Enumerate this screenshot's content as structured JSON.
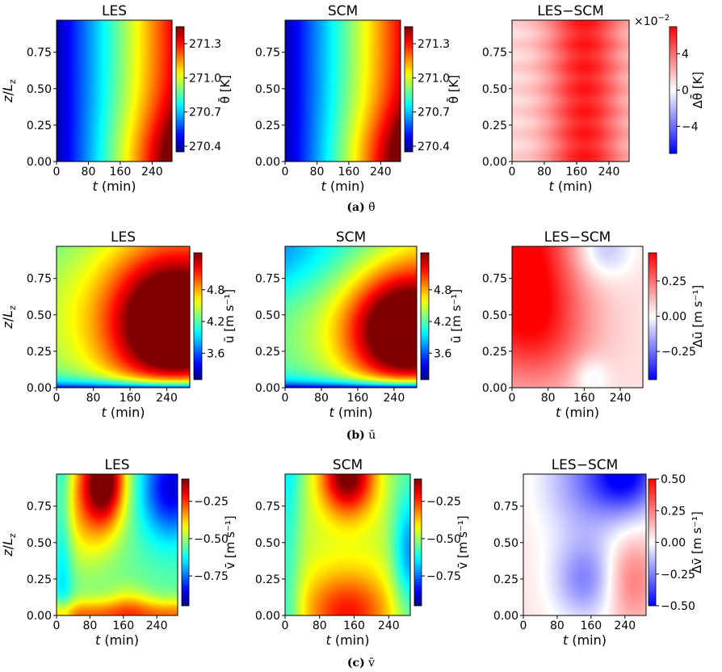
{
  "figure": {
    "captions": [
      {
        "tag": "(a)",
        "var": "θ̄"
      },
      {
        "tag": "(b)",
        "var": "ū"
      },
      {
        "tag": "(c)",
        "var": "v̄"
      }
    ]
  },
  "chart_data": [
    {
      "type": "heatmap",
      "row": "theta",
      "title": "LES",
      "xlabel": "t (min)",
      "ylabel": "z/Lz",
      "xticks": [
        "0",
        "80",
        "160",
        "240"
      ],
      "yticks": [
        "0.00",
        "0.25",
        "0.50",
        "0.75"
      ],
      "xlim": [
        0,
        290
      ],
      "ylim": [
        0,
        0.97
      ],
      "colormap": "jet",
      "colorbar": {
        "label": "θ̄ [K]",
        "range": [
          270.35,
          271.45
        ],
        "ticks": [
          "270.4",
          "270.7",
          "271.0",
          "271.3"
        ]
      },
      "field": "warming from 270.4 K at t=0 to 271.3 K at t=290 min; slightly warmer near surface at late times"
    },
    {
      "type": "heatmap",
      "row": "theta",
      "title": "SCM",
      "xlabel": "t (min)",
      "ylabel": "",
      "xticks": [
        "0",
        "80",
        "160",
        "240"
      ],
      "yticks": [
        "0.00",
        "0.25",
        "0.50",
        "0.75"
      ],
      "xlim": [
        0,
        290
      ],
      "ylim": [
        0,
        0.97
      ],
      "colormap": "jet",
      "colorbar": {
        "label": "θ̄ [K]",
        "range": [
          270.35,
          271.45
        ],
        "ticks": [
          "270.4",
          "270.7",
          "271.0",
          "271.3"
        ]
      },
      "field": "same as LES within 0.06 K"
    },
    {
      "type": "heatmap",
      "row": "theta",
      "title": "LES−SCM",
      "xlabel": "t (min)",
      "ylabel": "",
      "xticks": [
        "0",
        "80",
        "160",
        "240"
      ],
      "yticks": [
        "0.00",
        "0.25",
        "0.50",
        "0.75"
      ],
      "xlim": [
        0,
        290
      ],
      "ylim": [
        0,
        0.97
      ],
      "colormap": "bwr",
      "colorbar": {
        "label": "Δθ̄ [K]",
        "multiplier": "×10",
        "multiplier_exp": "−2",
        "range": [
          -7,
          7
        ],
        "ticks": [
          "−4",
          "0",
          "4"
        ]
      },
      "field": "positive 2–6 ×10⁻² K, maximum ~6 near t=160–200 min"
    },
    {
      "type": "heatmap",
      "row": "u",
      "title": "LES",
      "xlabel": "t (min)",
      "ylabel": "z/Lz",
      "xticks": [
        "0",
        "80",
        "160",
        "240"
      ],
      "yticks": [
        "0.00",
        "0.25",
        "0.50",
        "0.75"
      ],
      "xlim": [
        0,
        290
      ],
      "ylim": [
        0,
        0.97
      ],
      "colormap": "jet",
      "colorbar": {
        "label": "ū [m s⁻¹]",
        "range": [
          3.1,
          5.5
        ],
        "ticks": [
          "3.6",
          "4.2",
          "4.8"
        ]
      },
      "field": "jet core ~5.3 m/s at z≈0.45, t≈230 min; slow near surface"
    },
    {
      "type": "heatmap",
      "row": "u",
      "title": "SCM",
      "xlabel": "t (min)",
      "ylabel": "",
      "xticks": [
        "0",
        "80",
        "160",
        "240"
      ],
      "yticks": [
        "0.00",
        "0.25",
        "0.50",
        "0.75"
      ],
      "xlim": [
        0,
        290
      ],
      "ylim": [
        0,
        0.97
      ],
      "colormap": "jet",
      "colorbar": {
        "label": "ū [m s⁻¹]",
        "range": [
          3.1,
          5.5
        ],
        "ticks": [
          "3.6",
          "4.2",
          "4.8"
        ]
      },
      "field": "jet core ~5.3 m/s at z≈0.40, t≈240 min; weaker aloft early"
    },
    {
      "type": "heatmap",
      "row": "u",
      "title": "LES−SCM",
      "xlabel": "t (min)",
      "ylabel": "",
      "xticks": [
        "0",
        "80",
        "160",
        "240"
      ],
      "yticks": [
        "0.00",
        "0.25",
        "0.50",
        "0.75"
      ],
      "xlim": [
        0,
        290
      ],
      "ylim": [
        0,
        0.97
      ],
      "colormap": "bwr",
      "colorbar": {
        "label": "Δū [m s⁻¹]",
        "range": [
          -0.45,
          0.45
        ],
        "ticks": [
          "−0.25",
          "0.00",
          "0.25"
        ]
      },
      "field": "positive ~0.4 top-left, weak negative upper right and near surface late"
    },
    {
      "type": "heatmap",
      "row": "v",
      "title": "LES",
      "xlabel": "t (min)",
      "ylabel": "z/Lz",
      "xticks": [
        "0",
        "80",
        "160",
        "240"
      ],
      "yticks": [
        "0.00",
        "0.25",
        "0.50",
        "0.75"
      ],
      "xlim": [
        0,
        290
      ],
      "ylim": [
        0,
        0.97
      ],
      "colormap": "jet",
      "colorbar": {
        "label": "v̄ [m s⁻¹]",
        "range": [
          -0.95,
          -0.1
        ],
        "ticks": [
          "−0.75",
          "−0.50",
          "−0.25"
        ]
      },
      "field": "max ~−0.15 near top at t≈110 min; min ~−0.85 top-right"
    },
    {
      "type": "heatmap",
      "row": "v",
      "title": "SCM",
      "xlabel": "t (min)",
      "ylabel": "",
      "xticks": [
        "0",
        "80",
        "160",
        "240"
      ],
      "yticks": [
        "0.00",
        "0.25",
        "0.50",
        "0.75"
      ],
      "xlim": [
        0,
        290
      ],
      "ylim": [
        0,
        0.97
      ],
      "colormap": "jet",
      "colorbar": {
        "label": "v̄ [m s⁻¹]",
        "range": [
          -0.95,
          -0.1
        ],
        "ticks": [
          "−0.75",
          "−0.50",
          "−0.25"
        ]
      },
      "field": "max near top at t≈140 min and near surface; hourglass pattern"
    },
    {
      "type": "heatmap",
      "row": "v",
      "title": "LES−SCM",
      "xlabel": "t (min)",
      "ylabel": "",
      "xticks": [
        "0",
        "80",
        "160",
        "240"
      ],
      "yticks": [
        "0.00",
        "0.25",
        "0.50",
        "0.75"
      ],
      "xlim": [
        0,
        290
      ],
      "ylim": [
        0,
        0.97
      ],
      "colormap": "bwr",
      "colorbar": {
        "label": "Δv̄ [m s⁻¹]",
        "range": [
          -0.5,
          0.5
        ],
        "ticks": [
          "−0.50",
          "−0.25",
          "0.00",
          "0.25",
          "0.50"
        ]
      },
      "field": "negative ~−0.5 top-right, weak negative middle, positive ~0.2 lower right"
    }
  ]
}
